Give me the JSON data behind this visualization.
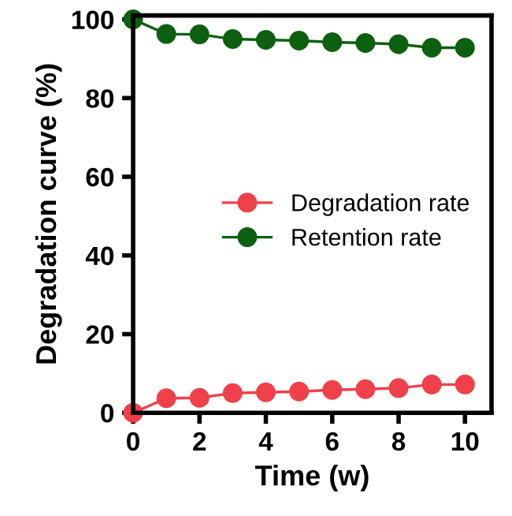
{
  "chart_data": {
    "type": "line",
    "xlabel": "Time (w)",
    "ylabel": "Degradation curve (%)",
    "x": [
      0,
      1,
      2,
      3,
      4,
      5,
      6,
      7,
      8,
      9,
      10
    ],
    "series": [
      {
        "name": "Degradation rate",
        "color": "#f0404a",
        "values": [
          0,
          3.7,
          3.8,
          5.0,
          5.2,
          5.4,
          5.8,
          6.0,
          6.3,
          7.2,
          7.2
        ]
      },
      {
        "name": "Retention rate",
        "color": "#0d6010",
        "values": [
          100,
          96.3,
          96.2,
          95.0,
          94.8,
          94.6,
          94.2,
          94.0,
          93.7,
          92.8,
          92.8
        ]
      }
    ],
    "xlim": [
      0,
      10.8
    ],
    "ylim": [
      0,
      101
    ],
    "xticks": [
      0,
      2,
      4,
      6,
      8,
      10
    ],
    "yticks": [
      0,
      20,
      40,
      60,
      80,
      100
    ],
    "marker": "circle",
    "legend": "right",
    "grid": false
  }
}
